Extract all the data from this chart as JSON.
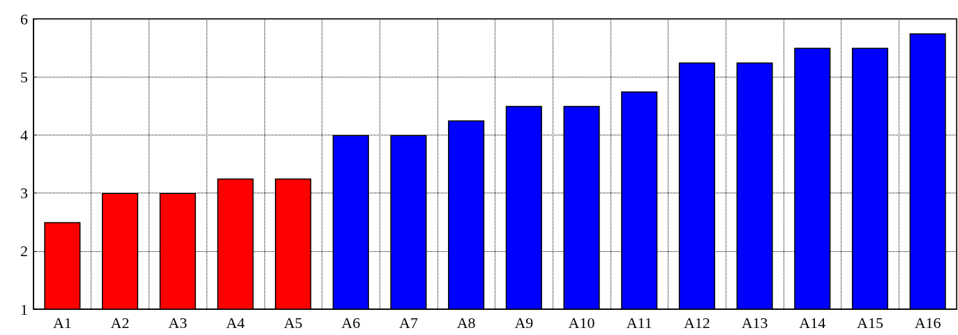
{
  "chart_data": {
    "type": "bar",
    "categories": [
      "A1",
      "A2",
      "A3",
      "A4",
      "A5",
      "A6",
      "A7",
      "A8",
      "A9",
      "A10",
      "A11",
      "A12",
      "A13",
      "A14",
      "A15",
      "A16"
    ],
    "values": [
      2.5,
      3,
      3,
      3.25,
      3.25,
      4,
      4,
      4.25,
      4.5,
      4.5,
      4.75,
      5.25,
      5.25,
      5.5,
      5.5,
      5.75
    ],
    "colors": [
      "#ff0000",
      "#ff0000",
      "#ff0000",
      "#ff0000",
      "#ff0000",
      "#0000ff",
      "#0000ff",
      "#0000ff",
      "#0000ff",
      "#0000ff",
      "#0000ff",
      "#0000ff",
      "#0000ff",
      "#0000ff",
      "#0000ff",
      "#0000ff"
    ],
    "ylim": [
      1,
      6
    ],
    "yticks": [
      1,
      2,
      3,
      4,
      5,
      6
    ],
    "grid": true
  }
}
